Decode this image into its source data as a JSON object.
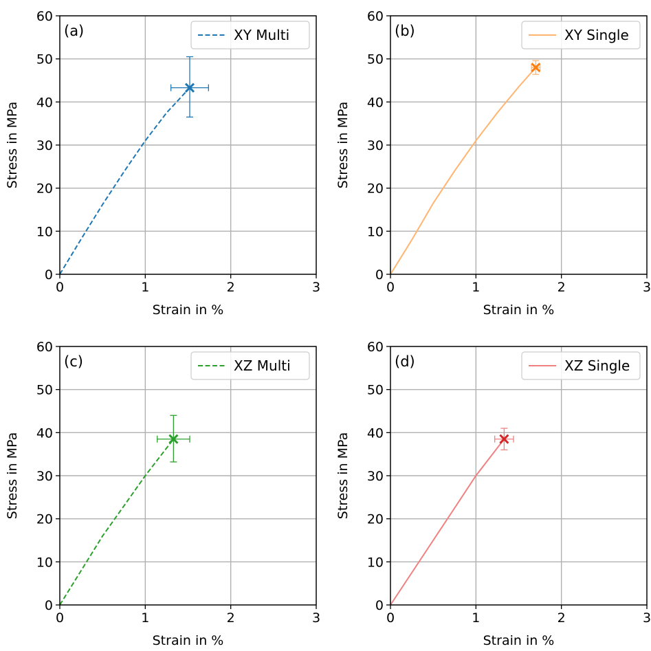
{
  "chart_data": [
    {
      "type": "line",
      "panel_label": "(a)",
      "xlabel": "Strain in %",
      "ylabel": "Stress in MPa",
      "xlim": [
        0,
        3
      ],
      "ylim": [
        0,
        60
      ],
      "xticks": [
        "0",
        "1",
        "2",
        "3"
      ],
      "yticks": [
        "0",
        "10",
        "20",
        "30",
        "40",
        "50",
        "60"
      ],
      "grid": true,
      "legend_position": "top-right",
      "series": [
        {
          "name": "XY Multi",
          "color": "#1f77b4",
          "line_style": "dashed",
          "x": [
            0,
            0.25,
            0.5,
            0.75,
            1.0,
            1.25,
            1.52
          ],
          "y": [
            0,
            8.2,
            16.2,
            23.8,
            31.0,
            37.5,
            43.3
          ],
          "failure_point": {
            "x": 1.52,
            "y": 43.3,
            "x_err": 0.22,
            "y_err_low": 6.8,
            "y_err_high": 7.2
          }
        }
      ]
    },
    {
      "type": "line",
      "panel_label": "(b)",
      "xlabel": "Strain in %",
      "ylabel": "Stress in MPa",
      "xlim": [
        0,
        3
      ],
      "ylim": [
        0,
        60
      ],
      "xticks": [
        "0",
        "1",
        "2",
        "3"
      ],
      "yticks": [
        "0",
        "10",
        "20",
        "30",
        "40",
        "50",
        "60"
      ],
      "grid": true,
      "legend_position": "top-right",
      "series": [
        {
          "name": "XY Single",
          "color": "#ffb570",
          "marker_color": "#ff7f0e",
          "line_style": "solid",
          "x": [
            0,
            0.25,
            0.5,
            0.75,
            1.0,
            1.25,
            1.5,
            1.7
          ],
          "y": [
            0,
            8.0,
            16.5,
            24.0,
            31.0,
            37.5,
            43.5,
            48.0
          ],
          "failure_point": {
            "x": 1.7,
            "y": 48.0,
            "x_err": 0.05,
            "y_err_low": 1.6,
            "y_err_high": 1.6
          }
        }
      ]
    },
    {
      "type": "line",
      "panel_label": "(c)",
      "xlabel": "Strain in %",
      "ylabel": "Stress in MPa",
      "xlim": [
        0,
        3
      ],
      "ylim": [
        0,
        60
      ],
      "xticks": [
        "0",
        "1",
        "2",
        "3"
      ],
      "yticks": [
        "0",
        "10",
        "20",
        "30",
        "40",
        "50",
        "60"
      ],
      "grid": true,
      "legend_position": "top-right",
      "series": [
        {
          "name": "XZ Multi",
          "color": "#2ca02c",
          "line_style": "dashed",
          "x": [
            0,
            0.25,
            0.5,
            0.75,
            1.0,
            1.33
          ],
          "y": [
            0,
            8.0,
            16.0,
            23.0,
            30.0,
            38.5
          ],
          "failure_point": {
            "x": 1.33,
            "y": 38.5,
            "x_err": 0.19,
            "y_err_low": 5.3,
            "y_err_high": 5.5
          }
        }
      ]
    },
    {
      "type": "line",
      "panel_label": "(d)",
      "xlabel": "Strain in %",
      "ylabel": "Stress in MPa",
      "xlim": [
        0,
        3
      ],
      "ylim": [
        0,
        60
      ],
      "xticks": [
        "0",
        "1",
        "2",
        "3"
      ],
      "yticks": [
        "0",
        "10",
        "20",
        "30",
        "40",
        "50",
        "60"
      ],
      "grid": true,
      "legend_position": "top-right",
      "series": [
        {
          "name": "XZ Single",
          "color": "#f08080",
          "marker_color": "#d62728",
          "line_style": "solid",
          "x": [
            0,
            0.25,
            0.5,
            0.75,
            1.0,
            1.33
          ],
          "y": [
            0,
            7.5,
            15.0,
            22.5,
            30.0,
            38.5
          ],
          "failure_point": {
            "x": 1.33,
            "y": 38.5,
            "x_err": 0.11,
            "y_err_low": 2.5,
            "y_err_high": 2.5
          }
        }
      ]
    }
  ]
}
